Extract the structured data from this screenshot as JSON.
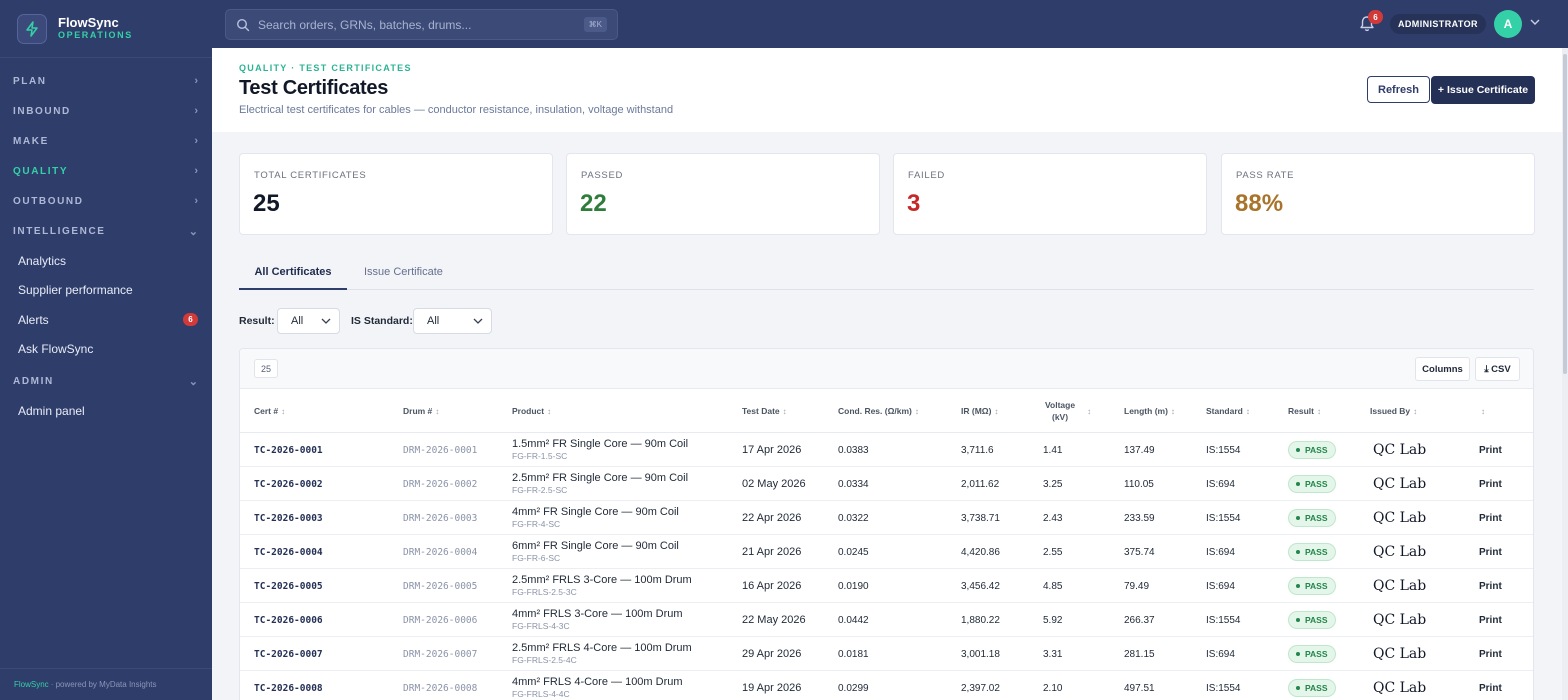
{
  "brand": {
    "name": "FlowSync",
    "subtitle": "OPERATIONS"
  },
  "nav": {
    "plan": "PLAN",
    "inbound": "INBOUND",
    "make": "MAKE",
    "quality": "QUALITY",
    "outbound": "OUTBOUND",
    "intelligence": "INTELLIGENCE",
    "analytics": "Analytics",
    "supplier_performance": "Supplier performance",
    "alerts": "Alerts",
    "alerts_badge": "6",
    "ask": "Ask FlowSync",
    "admin": "ADMIN",
    "admin_panel": "Admin panel"
  },
  "footer": {
    "brand": "FlowSync",
    "text": "· powered by MyData Insights"
  },
  "topbar": {
    "search_placeholder": "Search orders, GRNs, batches, drums...",
    "search_shortcut": "⌘K",
    "notification_count": "6",
    "role": "ADMINISTRATOR",
    "avatar_initial": "A"
  },
  "header": {
    "breadcrumb": "QUALITY · TEST CERTIFICATES",
    "title": "Test Certificates",
    "subtitle": "Electrical test certificates for cables — conductor resistance, insulation, voltage withstand",
    "refresh_label": "Refresh",
    "issue_label": "+ Issue Certificate"
  },
  "kpis": [
    {
      "label": "TOTAL CERTIFICATES",
      "value": "25",
      "color": "#111827"
    },
    {
      "label": "PASSED",
      "value": "22",
      "color": "#2e7d3a"
    },
    {
      "label": "FAILED",
      "value": "3",
      "color": "#c62828"
    },
    {
      "label": "PASS RATE",
      "value": "88%",
      "color": "#a9742a"
    }
  ],
  "tabs": {
    "all": "All Certificates",
    "issue": "Issue Certificate"
  },
  "filters": {
    "result_label": "Result:",
    "result_value": "All",
    "standard_label": "IS Standard:",
    "standard_value": "All"
  },
  "table": {
    "count": "25",
    "columns_btn": "Columns",
    "csv_btn": "⤓ CSV",
    "headers": {
      "cert": "Cert #",
      "drum": "Drum #",
      "product": "Product",
      "test_date": "Test Date",
      "cond": "Cond. Res. (Ω/km)",
      "ir": "IR (MΩ)",
      "voltage_1": "Voltage",
      "voltage_2": "(kV)",
      "length": "Length (m)",
      "standard": "Standard",
      "result": "Result",
      "issued_by": "Issued By"
    },
    "rows": [
      {
        "cert": "TC-2026-0001",
        "drum": "DRM-2026-0001",
        "product": "1.5mm² FR Single Core — 90m Coil",
        "code": "FG-FR-1.5-SC",
        "date": "17 Apr 2026",
        "cond": "0.0383",
        "ir": "3,711.6",
        "voltage": "1.41",
        "length": "137.49",
        "standard": "IS:1554",
        "result": "PASS",
        "issued_by": "QC Lab",
        "action": "Print"
      },
      {
        "cert": "TC-2026-0002",
        "drum": "DRM-2026-0002",
        "product": "2.5mm² FR Single Core — 90m Coil",
        "code": "FG-FR-2.5-SC",
        "date": "02 May 2026",
        "cond": "0.0334",
        "ir": "2,011.62",
        "voltage": "3.25",
        "length": "110.05",
        "standard": "IS:694",
        "result": "PASS",
        "issued_by": "QC Lab",
        "action": "Print"
      },
      {
        "cert": "TC-2026-0003",
        "drum": "DRM-2026-0003",
        "product": "4mm² FR Single Core — 90m Coil",
        "code": "FG-FR-4-SC",
        "date": "22 Apr 2026",
        "cond": "0.0322",
        "ir": "3,738.71",
        "voltage": "2.43",
        "length": "233.59",
        "standard": "IS:1554",
        "result": "PASS",
        "issued_by": "QC Lab",
        "action": "Print"
      },
      {
        "cert": "TC-2026-0004",
        "drum": "DRM-2026-0004",
        "product": "6mm² FR Single Core — 90m Coil",
        "code": "FG-FR-6-SC",
        "date": "21 Apr 2026",
        "cond": "0.0245",
        "ir": "4,420.86",
        "voltage": "2.55",
        "length": "375.74",
        "standard": "IS:694",
        "result": "PASS",
        "issued_by": "QC Lab",
        "action": "Print"
      },
      {
        "cert": "TC-2026-0005",
        "drum": "DRM-2026-0005",
        "product": "2.5mm² FRLS 3-Core — 100m Drum",
        "code": "FG-FRLS-2.5-3C",
        "date": "16 Apr 2026",
        "cond": "0.0190",
        "ir": "3,456.42",
        "voltage": "4.85",
        "length": "79.49",
        "standard": "IS:694",
        "result": "PASS",
        "issued_by": "QC Lab",
        "action": "Print"
      },
      {
        "cert": "TC-2026-0006",
        "drum": "DRM-2026-0006",
        "product": "4mm² FRLS 3-Core — 100m Drum",
        "code": "FG-FRLS-4-3C",
        "date": "22 May 2026",
        "cond": "0.0442",
        "ir": "1,880.22",
        "voltage": "5.92",
        "length": "266.37",
        "standard": "IS:1554",
        "result": "PASS",
        "issued_by": "QC Lab",
        "action": "Print"
      },
      {
        "cert": "TC-2026-0007",
        "drum": "DRM-2026-0007",
        "product": "2.5mm² FRLS 4-Core — 100m Drum",
        "code": "FG-FRLS-2.5-4C",
        "date": "29 Apr 2026",
        "cond": "0.0181",
        "ir": "3,001.18",
        "voltage": "3.31",
        "length": "281.15",
        "standard": "IS:694",
        "result": "PASS",
        "issued_by": "QC Lab",
        "action": "Print"
      },
      {
        "cert": "TC-2026-0008",
        "drum": "DRM-2026-0008",
        "product": "4mm² FRLS 4-Core — 100m Drum",
        "code": "FG-FRLS-4-4C",
        "date": "19 Apr 2026",
        "cond": "0.0299",
        "ir": "2,397.02",
        "voltage": "2.10",
        "length": "497.51",
        "standard": "IS:1554",
        "result": "PASS",
        "issued_by": "QC Lab",
        "action": "Print"
      }
    ]
  }
}
